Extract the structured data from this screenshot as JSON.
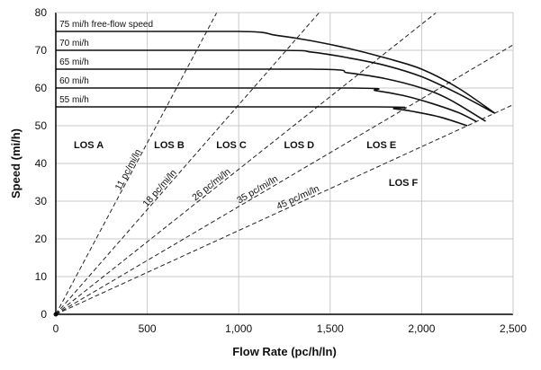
{
  "chart_data": {
    "type": "line",
    "xlabel": "Flow Rate (pc/h/ln)",
    "ylabel": "Speed (mi/h)",
    "xlim": [
      0,
      2500
    ],
    "ylim": [
      0,
      80
    ],
    "xticks": [
      "0",
      "500",
      "1,000",
      "1,500",
      "2,000",
      "2,500"
    ],
    "yticks": [
      "0",
      "10",
      "20",
      "30",
      "40",
      "50",
      "60",
      "70",
      "80"
    ],
    "grid": true,
    "series": [
      {
        "name": "75 mi/h free-flow speed",
        "points": [
          [
            0,
            75
          ],
          [
            1000,
            75
          ],
          [
            1200,
            74
          ],
          [
            1400,
            72.5
          ],
          [
            1600,
            70.5
          ],
          [
            1800,
            68
          ],
          [
            2000,
            65
          ],
          [
            2200,
            60
          ],
          [
            2400,
            53.3
          ]
        ]
      },
      {
        "name": "70 mi/h",
        "points": [
          [
            0,
            70
          ],
          [
            1200,
            70
          ],
          [
            1400,
            69.5
          ],
          [
            1600,
            68
          ],
          [
            1800,
            66
          ],
          [
            2000,
            63
          ],
          [
            2200,
            58.5
          ],
          [
            2400,
            53.3
          ]
        ]
      },
      {
        "name": "65 mi/h",
        "points": [
          [
            0,
            65
          ],
          [
            1400,
            65
          ],
          [
            1600,
            64
          ],
          [
            1800,
            62.5
          ],
          [
            2000,
            60
          ],
          [
            2150,
            57
          ],
          [
            2350,
            51.2
          ]
        ]
      },
      {
        "name": "60 mi/h",
        "points": [
          [
            0,
            60
          ],
          [
            1600,
            60
          ],
          [
            1750,
            59.3
          ],
          [
            1900,
            58
          ],
          [
            2050,
            56
          ],
          [
            2200,
            53.5
          ],
          [
            2300,
            51.1
          ]
        ]
      },
      {
        "name": "55 mi/h",
        "points": [
          [
            0,
            55
          ],
          [
            1750,
            55
          ],
          [
            1850,
            54.5
          ],
          [
            1950,
            53.8
          ],
          [
            2100,
            52.3
          ],
          [
            2250,
            50
          ]
        ]
      }
    ],
    "density_lines": [
      {
        "label": "11 pc/mi/ln",
        "density": 11
      },
      {
        "label": "18 pc/mi/ln",
        "density": 18
      },
      {
        "label": "26 pc/mi/ln",
        "density": 26
      },
      {
        "label": "35 pc/mi/ln",
        "density": 35
      },
      {
        "label": "45 pc/mi/ln",
        "density": 45
      }
    ],
    "los_labels": [
      {
        "text": "LOS A",
        "x": 180,
        "y": 45
      },
      {
        "text": "LOS B",
        "x": 620,
        "y": 45
      },
      {
        "text": "LOS C",
        "x": 960,
        "y": 45
      },
      {
        "text": "LOS D",
        "x": 1330,
        "y": 45
      },
      {
        "text": "LOS E",
        "x": 1780,
        "y": 45
      },
      {
        "text": "LOS F",
        "x": 1900,
        "y": 35
      }
    ]
  }
}
